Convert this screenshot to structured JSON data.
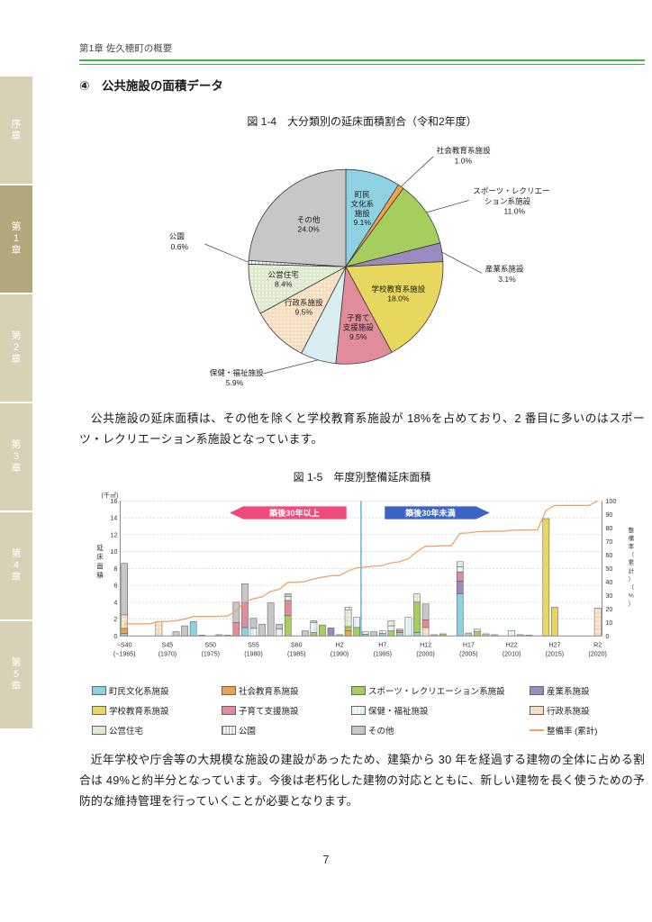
{
  "page": {
    "header": "第1章 佐久穂町の概要",
    "page_number": "7",
    "accent_green": "#3eb44a"
  },
  "sidebar": {
    "tabs": [
      {
        "label": "序章",
        "active": false
      },
      {
        "label": "第1章",
        "active": true
      },
      {
        "label": "第2章",
        "active": false
      },
      {
        "label": "第3章",
        "active": false
      },
      {
        "label": "第4章",
        "active": false
      },
      {
        "label": "第5章",
        "active": false
      }
    ],
    "inactive_color": "#d7d1b5",
    "active_color": "#b2a87b"
  },
  "section": {
    "heading": "④　公共施設の面積データ"
  },
  "paragraphs": {
    "p1": "公共施設の延床面積は、その他を除くと学校教育系施設が 18%を占めており、2 番目に多いのはスポーツ・レクリエーション系施設となっています。",
    "p2": "近年学校や庁舎等の大規模な施設の建設があったため、建築から 30 年を経過する建物の全体に占める割合は 49%と約半分となっています。今後は老朽化した建物の対応とともに、新しい建物を長く使うための予防的な維持管理を行っていくことが必要となります。"
  },
  "chart_data": [
    {
      "type": "pie",
      "title": "図 1-4　大分類別の延床面積割合（令和2年度）",
      "direction": "clockwise",
      "start_angle_deg": 0,
      "slices": [
        {
          "label": "町民文化系施設",
          "value": 9.1,
          "color": "#8ed1e2",
          "label_lines": [
            "町民",
            "文化系",
            "施設",
            "9.1%"
          ],
          "placement": "inside"
        },
        {
          "label": "社会教育系施設",
          "value": 1.0,
          "color": "#f0a14c",
          "label_lines": [
            "社会教育系施設",
            "1.0%"
          ],
          "placement": "outside"
        },
        {
          "label": "スポーツ・レクリエーション系施設",
          "value": 11.0,
          "color": "#a6ce5f",
          "label_lines": [
            "スポーツ・レクリエー",
            "ション系施設",
            "11.0%"
          ],
          "placement": "outside"
        },
        {
          "label": "産業系施設",
          "value": 3.1,
          "color": "#9c8bc0",
          "label_lines": [
            "産業系施設",
            "3.1%"
          ],
          "placement": "outside"
        },
        {
          "label": "学校教育系施設",
          "value": 18.0,
          "color": "#e8d75e",
          "label_lines": [
            "学校教育系施設",
            "18.0%"
          ],
          "placement": "inside"
        },
        {
          "label": "子育て支援施設",
          "value": 9.5,
          "color": "#e18c9b",
          "label_lines": [
            "子育て",
            "支援施設",
            "9.5%"
          ],
          "placement": "inside"
        },
        {
          "label": "保健・福祉施設",
          "value": 5.9,
          "color": "#d8eef0",
          "label_lines": [
            "保健・福祉施設",
            "5.9%"
          ],
          "placement": "outside"
        },
        {
          "label": "行政系施設",
          "value": 9.5,
          "color": "#f7dcbc",
          "pattern": "dots",
          "label_lines": [
            "行政系施設",
            "9.5%"
          ],
          "placement": "inside"
        },
        {
          "label": "公営住宅",
          "value": 8.4,
          "color": "#dce9cc",
          "pattern": "dots",
          "label_lines": [
            "公営住宅",
            "8.4%"
          ],
          "placement": "inside"
        },
        {
          "label": "公園",
          "value": 0.6,
          "color": "#ffffff",
          "pattern": "vlines2",
          "label_lines": [
            "公園",
            "0.6%"
          ],
          "placement": "outside"
        },
        {
          "label": "その他",
          "value": 24.0,
          "color": "#c7c7c7",
          "label_lines": [
            "その他",
            "24.0%"
          ],
          "placement": "inside"
        }
      ]
    },
    {
      "type": "bar",
      "title": "図 1-5　年度別整備延床面積",
      "y_left": {
        "unit": "(千㎡)",
        "label": "延床面積",
        "min": 0,
        "max": 16,
        "step": 2
      },
      "y_right": {
        "label": "整備率（累計）（%）",
        "min": 0,
        "max": 100,
        "step": 10
      },
      "x_start_year": 1965,
      "x_end_year": 2020,
      "x_ticks": [
        {
          "era": "~S40",
          "year": "(~1965)"
        },
        {
          "era": "S45",
          "year": "(1970)"
        },
        {
          "era": "S50",
          "year": "(1975)"
        },
        {
          "era": "S55",
          "year": "(1980)"
        },
        {
          "era": "S60",
          "year": "(1985)"
        },
        {
          "era": "H2",
          "year": "(1990)"
        },
        {
          "era": "H7",
          "year": "(1995)"
        },
        {
          "era": "H12",
          "year": "(2000)"
        },
        {
          "era": "H17",
          "year": "(2005)"
        },
        {
          "era": "H22",
          "year": "(2010)"
        },
        {
          "era": "H27",
          "year": "(2015)"
        },
        {
          "era": "R2",
          "year": "(2020)"
        }
      ],
      "annotations": {
        "left_banner": {
          "text": "築後30年以上",
          "color": "#ef4b7d"
        },
        "right_banner": {
          "text": "築後30年未満",
          "color": "#3c64c4"
        },
        "divider_after_year": 1992,
        "divider_color": "#3aa3c4"
      },
      "categories": [
        {
          "name": "町民文化系施設",
          "color": "#8ed1e2"
        },
        {
          "name": "社会教育系施設",
          "color": "#f0a14c"
        },
        {
          "name": "スポーツ・レクリエーション系施設",
          "color": "#a6ce5f"
        },
        {
          "name": "産業系施設",
          "color": "#9c8bc0"
        },
        {
          "name": "学校教育系施設",
          "color": "#e8d75e"
        },
        {
          "name": "子育て支援施設",
          "color": "#e18c9b"
        },
        {
          "name": "保健・福祉施設",
          "color": "#d8eef0",
          "pattern": "vlines"
        },
        {
          "name": "行政系施設",
          "color": "#f7dcbc",
          "pattern": "dots"
        },
        {
          "name": "公営住宅",
          "color": "#dce9cc",
          "pattern": "dots"
        },
        {
          "name": "公園",
          "color": "#ffffff",
          "pattern": "vlines2"
        },
        {
          "name": "その他",
          "color": "#c7c7c7"
        }
      ],
      "bars": [
        {
          "y": 1965,
          "s": [
            [
              0,
              0.3
            ],
            [
              1,
              0.6
            ],
            [
              7,
              1.6
            ],
            [
              10,
              6.1
            ]
          ]
        },
        {
          "y": 1969,
          "s": [
            [
              7,
              1.7
            ]
          ]
        },
        {
          "y": 1971,
          "s": [
            [
              10,
              0.5
            ]
          ]
        },
        {
          "y": 1972,
          "s": [
            [
              10,
              1.2
            ]
          ]
        },
        {
          "y": 1973,
          "s": [
            [
              0,
              1.7
            ]
          ]
        },
        {
          "y": 1974,
          "s": [
            [
              10,
              0.1
            ]
          ]
        },
        {
          "y": 1976,
          "s": [
            [
              10,
              0.15
            ]
          ]
        },
        {
          "y": 1977,
          "s": [
            [
              10,
              0.1
            ]
          ]
        },
        {
          "y": 1978,
          "s": [
            [
              5,
              1.6
            ],
            [
              10,
              2.4
            ]
          ]
        },
        {
          "y": 1979,
          "s": [
            [
              0,
              1.0
            ],
            [
              5,
              2.9
            ],
            [
              10,
              2.3
            ]
          ]
        },
        {
          "y": 1980,
          "s": [
            [
              6,
              0.9
            ],
            [
              10,
              1.2
            ]
          ]
        },
        {
          "y": 1981,
          "s": [
            [
              10,
              1.4
            ]
          ]
        },
        {
          "y": 1982,
          "s": [
            [
              10,
              3.9
            ]
          ]
        },
        {
          "y": 1983,
          "s": [
            [
              6,
              0.8
            ],
            [
              10,
              0.6
            ]
          ]
        },
        {
          "y": 1984,
          "s": [
            [
              2,
              2.4
            ],
            [
              5,
              1.8
            ],
            [
              8,
              0.5
            ],
            [
              10,
              0.3
            ]
          ]
        },
        {
          "y": 1986,
          "s": [
            [
              10,
              0.6
            ]
          ]
        },
        {
          "y": 1987,
          "s": [
            [
              2,
              0.4
            ],
            [
              6,
              1.2
            ],
            [
              10,
              0.2
            ]
          ]
        },
        {
          "y": 1988,
          "s": [
            [
              2,
              1.3
            ]
          ]
        },
        {
          "y": 1989,
          "s": [
            [
              3,
              0.95
            ]
          ]
        },
        {
          "y": 1990,
          "s": [
            [
              10,
              0.15
            ]
          ]
        },
        {
          "y": 1991,
          "s": [
            [
              1,
              0.6
            ],
            [
              2,
              0.5
            ],
            [
              8,
              2.0
            ],
            [
              9,
              0.3
            ]
          ]
        },
        {
          "y": 1992,
          "s": [
            [
              2,
              1.0
            ],
            [
              6,
              1.2
            ]
          ]
        },
        {
          "y": 1993,
          "s": [
            [
              0,
              0.2
            ],
            [
              6,
              0.3
            ]
          ]
        },
        {
          "y": 1994,
          "s": [
            [
              10,
              0.5
            ]
          ]
        },
        {
          "y": 1995,
          "s": [
            [
              0,
              0.3
            ],
            [
              9,
              0.3
            ]
          ]
        },
        {
          "y": 1996,
          "s": [
            [
              2,
              0.6
            ],
            [
              6,
              0.6
            ],
            [
              8,
              0.6
            ]
          ]
        },
        {
          "y": 1997,
          "s": [
            [
              0,
              0.4
            ],
            [
              1,
              0.2
            ],
            [
              10,
              0.2
            ]
          ]
        },
        {
          "y": 1998,
          "s": [
            [
              6,
              2.2
            ]
          ]
        },
        {
          "y": 1999,
          "s": [
            [
              0,
              0.4
            ],
            [
              2,
              3.6
            ],
            [
              8,
              1.0
            ]
          ]
        },
        {
          "y": 2000,
          "s": [
            [
              7,
              1.0
            ],
            [
              5,
              0.9
            ],
            [
              10,
              1.9
            ]
          ]
        },
        {
          "y": 2001,
          "s": [
            [
              10,
              0.15
            ]
          ]
        },
        {
          "y": 2002,
          "s": [
            [
              2,
              0.25
            ]
          ]
        },
        {
          "y": 2004,
          "s": [
            [
              0,
              5.0
            ],
            [
              3,
              1.5
            ],
            [
              5,
              1.1
            ],
            [
              6,
              0.6
            ],
            [
              8,
              0.6
            ]
          ]
        },
        {
          "y": 2005,
          "s": [
            [
              10,
              0.35
            ]
          ]
        },
        {
          "y": 2006,
          "s": [
            [
              2,
              0.5
            ],
            [
              8,
              0.3
            ]
          ]
        },
        {
          "y": 2007,
          "s": [
            [
              10,
              0.25
            ]
          ]
        },
        {
          "y": 2008,
          "s": [
            [
              10,
              0.15
            ]
          ]
        },
        {
          "y": 2010,
          "s": [
            [
              6,
              0.65
            ]
          ]
        },
        {
          "y": 2011,
          "s": [
            [
              10,
              0.15
            ]
          ]
        },
        {
          "y": 2012,
          "s": [
            [
              10,
              0.1
            ]
          ]
        },
        {
          "y": 2014,
          "s": [
            [
              4,
              13.9
            ]
          ]
        },
        {
          "y": 2015,
          "s": [
            [
              4,
              3.4
            ]
          ]
        },
        {
          "y": 2020,
          "s": [
            [
              7,
              3.3
            ]
          ]
        }
      ],
      "line": {
        "name": "整備率 (累計)",
        "color": "#efa36a",
        "values_by_year": [
          9.0,
          9.0,
          9.0,
          9.0,
          10.7,
          10.7,
          11.3,
          12.5,
          14.3,
          14.4,
          14.4,
          14.5,
          14.7,
          18.8,
          25.3,
          27.5,
          28.9,
          33.0,
          34.5,
          39.7,
          39.7,
          40.3,
          42.2,
          43.5,
          44.5,
          44.7,
          48.2,
          50.5,
          51.0,
          51.6,
          52.2,
          54.1,
          54.9,
          57.2,
          62.4,
          66.4,
          66.5,
          66.8,
          66.8,
          76.0,
          76.3,
          77.2,
          77.4,
          77.6,
          77.6,
          78.3,
          78.4,
          78.5,
          78.5,
          93.0,
          96.6,
          96.6,
          96.6,
          96.6,
          96.6,
          100.0
        ]
      },
      "legend_line_label": "整備率 (累計)"
    }
  ]
}
